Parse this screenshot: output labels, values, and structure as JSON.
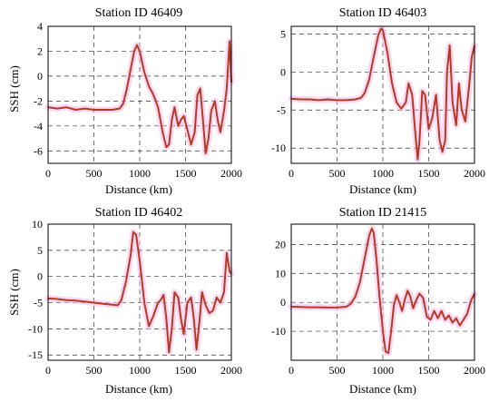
{
  "chart_data": [
    {
      "type": "line",
      "title": "Station ID 46409",
      "xlabel": "Distance (km)",
      "ylabel": "SSH (cm)",
      "xlim": [
        0,
        2000
      ],
      "ylim": [
        -7,
        4
      ],
      "xticks": [
        0,
        500,
        1000,
        1500,
        2000
      ],
      "yticks": [
        -6,
        -4,
        -2,
        0,
        2,
        4
      ],
      "grid": true,
      "series": [
        {
          "color": "#b83a1e",
          "x": [
            0,
            100,
            200,
            300,
            400,
            500,
            600,
            700,
            780,
            820,
            860,
            900,
            940,
            970,
            1000,
            1050,
            1100,
            1150,
            1200,
            1250,
            1290,
            1320,
            1350,
            1380,
            1420,
            1450,
            1480,
            1520,
            1560,
            1600,
            1630,
            1660,
            1690,
            1720,
            1750,
            1780,
            1820,
            1850,
            1880,
            1920,
            1950,
            1980,
            2000
          ],
          "y": [
            -2.5,
            -2.6,
            -2.5,
            -2.7,
            -2.6,
            -2.7,
            -2.7,
            -2.7,
            -2.6,
            -2.2,
            -1.0,
            0.5,
            2.0,
            2.5,
            2.0,
            0.3,
            -0.8,
            -1.5,
            -2.5,
            -4.5,
            -5.7,
            -5.5,
            -3.5,
            -2.5,
            -4.0,
            -3.5,
            -3.2,
            -4.3,
            -5.5,
            -4.5,
            -1.5,
            -1.0,
            -3.5,
            -6.2,
            -5.0,
            -2.8,
            -2.0,
            -3.5,
            -4.5,
            -2.8,
            -1.0,
            2.8,
            -0.5
          ]
        }
      ]
    },
    {
      "type": "line",
      "title": "Station ID 46403",
      "xlabel": "Distance (km)",
      "ylabel": "",
      "xlim": [
        0,
        2000
      ],
      "ylim": [
        -12,
        6
      ],
      "xticks": [
        0,
        500,
        1000,
        1500,
        2000
      ],
      "yticks": [
        -10,
        -5,
        0,
        5
      ],
      "grid": true,
      "series": [
        {
          "color": "#b83a1e",
          "x": [
            0,
            100,
            200,
            300,
            400,
            500,
            600,
            700,
            760,
            800,
            850,
            900,
            950,
            980,
            1000,
            1050,
            1100,
            1150,
            1200,
            1250,
            1280,
            1320,
            1350,
            1380,
            1400,
            1430,
            1460,
            1500,
            1540,
            1580,
            1620,
            1650,
            1680,
            1700,
            1730,
            1760,
            1800,
            1830,
            1860,
            1900,
            1940,
            1970,
            2000
          ],
          "y": [
            -3.5,
            -3.6,
            -3.6,
            -3.7,
            -3.6,
            -3.7,
            -3.7,
            -3.6,
            -3.4,
            -2.8,
            -1.0,
            2.0,
            4.8,
            5.7,
            5.5,
            2.5,
            -1.5,
            -4.0,
            -4.8,
            -4.0,
            -1.5,
            -3.0,
            -7.5,
            -11.5,
            -9.0,
            -2.5,
            -3.0,
            -7.5,
            -6.0,
            -3.0,
            -9.0,
            -10.5,
            -9.0,
            0.0,
            3.5,
            -4.0,
            -7.0,
            -1.5,
            -5.0,
            -6.5,
            -2.0,
            2.0,
            3.5
          ]
        }
      ]
    },
    {
      "type": "line",
      "title": "Station ID 46402",
      "xlabel": "Distance (km)",
      "ylabel": "SSH (cm)",
      "xlim": [
        0,
        2000
      ],
      "ylim": [
        -16,
        10
      ],
      "xticks": [
        0,
        500,
        1000,
        1500,
        2000
      ],
      "yticks": [
        -15,
        -10,
        -5,
        0,
        5,
        10
      ],
      "grid": true,
      "series": [
        {
          "color": "#b83a1e",
          "x": [
            0,
            100,
            200,
            300,
            400,
            500,
            600,
            700,
            760,
            800,
            850,
            900,
            930,
            960,
            1000,
            1050,
            1100,
            1150,
            1200,
            1230,
            1260,
            1290,
            1320,
            1350,
            1380,
            1420,
            1450,
            1480,
            1520,
            1560,
            1590,
            1620,
            1650,
            1680,
            1720,
            1760,
            1800,
            1840,
            1880,
            1920,
            1950,
            1980,
            2000
          ],
          "y": [
            -4.2,
            -4.3,
            -4.5,
            -4.6,
            -4.8,
            -5.0,
            -5.2,
            -5.4,
            -5.5,
            -4.5,
            -1.0,
            4.0,
            8.5,
            8.0,
            3.0,
            -5.0,
            -9.5,
            -7.5,
            -5.0,
            -4.5,
            -3.5,
            -8.0,
            -14.5,
            -10.0,
            -3.0,
            -4.0,
            -8.0,
            -11.0,
            -5.0,
            -4.0,
            -8.0,
            -14.0,
            -9.0,
            -3.0,
            -5.5,
            -7.0,
            -6.5,
            -4.0,
            -5.0,
            -3.0,
            4.5,
            1.0,
            0.5
          ]
        }
      ]
    },
    {
      "type": "line",
      "title": "Station ID 21415",
      "xlabel": "Distance (km)",
      "ylabel": "",
      "xlim": [
        0,
        2000
      ],
      "ylim": [
        -20,
        27
      ],
      "xticks": [
        0,
        500,
        1000,
        1500,
        2000
      ],
      "yticks": [
        -10,
        0,
        10,
        20
      ],
      "grid": true,
      "series": [
        {
          "color": "#b83a1e",
          "x": [
            0,
            100,
            200,
            300,
            400,
            500,
            600,
            650,
            700,
            750,
            800,
            850,
            880,
            900,
            930,
            960,
            1000,
            1030,
            1060,
            1090,
            1120,
            1150,
            1180,
            1210,
            1240,
            1270,
            1300,
            1330,
            1360,
            1400,
            1440,
            1480,
            1520,
            1560,
            1600,
            1640,
            1680,
            1720,
            1760,
            1800,
            1840,
            1880,
            1920,
            1960,
            2000
          ],
          "y": [
            -1.5,
            -1.6,
            -1.7,
            -1.7,
            -1.8,
            -1.8,
            -1.5,
            -0.5,
            2.0,
            7.0,
            15.0,
            23.0,
            25.5,
            24.0,
            15.0,
            3.0,
            -10.0,
            -17.0,
            -17.5,
            -10.0,
            -1.0,
            2.5,
            0.0,
            -3.0,
            1.0,
            4.0,
            2.0,
            -2.0,
            0.5,
            3.0,
            1.5,
            -5.0,
            -6.0,
            -3.0,
            -5.5,
            -3.0,
            -6.0,
            -4.5,
            -7.0,
            -5.5,
            -8.0,
            -6.0,
            -4.0,
            0.5,
            3.0
          ]
        }
      ]
    }
  ]
}
